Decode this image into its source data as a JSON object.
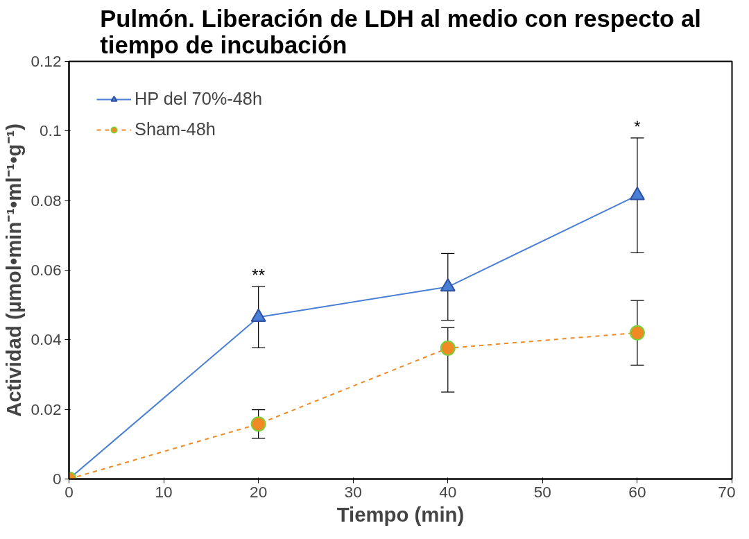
{
  "chart_data": {
    "type": "line",
    "title": "Pulmón. Liberación de LDH al medio con respecto al tiempo de incubación",
    "xlabel": "Tiempo (min)",
    "ylabel": "Actividad (µmol•min⁻¹•ml⁻¹•g⁻¹)",
    "x": [
      0,
      20,
      40,
      60
    ],
    "series": [
      {
        "name": "HP del 70%-48h",
        "color": "#4a7fd6",
        "marker": "triangle",
        "line_style": "solid",
        "values": [
          0,
          0.0465,
          0.0552,
          0.0815
        ],
        "errors": [
          null,
          0.0088,
          0.0096,
          0.0165
        ]
      },
      {
        "name": "Sham-48h",
        "color": "#f08a24",
        "marker": "circle",
        "line_style": "dashed",
        "values": [
          0,
          0.0158,
          0.0376,
          0.042
        ],
        "errors": [
          null,
          0.0041,
          [
            0.025,
            0.0435
          ],
          0.0093
        ]
      }
    ],
    "annotations": [
      {
        "text": "**",
        "x": 20,
        "y": 0.0553
      },
      {
        "text": "*",
        "x": 60,
        "y": 0.098
      }
    ],
    "xlim": [
      0,
      70
    ],
    "xticks": [
      0,
      10,
      20,
      30,
      40,
      50,
      60,
      70
    ],
    "ylim": [
      0,
      0.12
    ],
    "yticks": [
      0,
      0.02,
      0.04,
      0.06,
      0.08,
      0.1,
      0.12
    ],
    "grid": false,
    "legend": "top left"
  }
}
